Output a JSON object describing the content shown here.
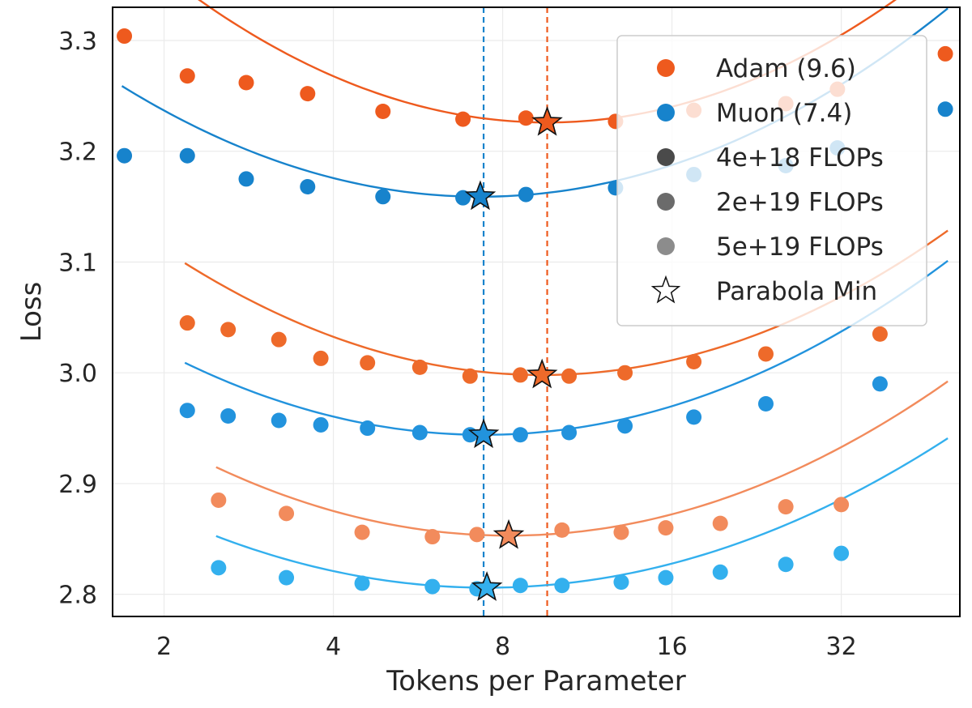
{
  "chart_data": {
    "type": "scatter",
    "xlabel": "Tokens per Parameter",
    "ylabel": "Loss",
    "xscale": "log2",
    "xlim": [
      1.62,
      52
    ],
    "ylim": [
      2.78,
      3.33
    ],
    "xticks": [
      2,
      4,
      8,
      16,
      32
    ],
    "yticks": [
      2.8,
      2.9,
      3.0,
      3.1,
      3.2,
      3.3
    ],
    "ytick_labels": [
      "2.8",
      "2.9",
      "3.0",
      "3.1",
      "3.2",
      "3.3"
    ],
    "grid": true,
    "legend_position": "top-right",
    "optimal_lines": [
      {
        "optimizer": "Adam",
        "x": 9.6,
        "color": "#EE5A1E"
      },
      {
        "optimizer": "Muon",
        "x": 7.4,
        "color": "#1783CC"
      }
    ],
    "series": [
      {
        "name": "Adam 4e+18 FLOPs",
        "optimizer": "Adam",
        "flops": "4e+18",
        "color": "#EE5A1E",
        "points": [
          [
            1.7,
            3.304
          ],
          [
            2.2,
            3.268
          ],
          [
            2.8,
            3.262
          ],
          [
            3.6,
            3.252
          ],
          [
            4.9,
            3.236
          ],
          [
            6.8,
            3.229
          ],
          [
            8.8,
            3.23
          ],
          [
            12.7,
            3.227
          ],
          [
            17.5,
            3.237
          ],
          [
            25.5,
            3.243
          ],
          [
            31.5,
            3.256
          ],
          [
            49,
            3.288
          ]
        ],
        "curve": {
          "a": 0.0262,
          "x_min": 9.6,
          "y_min": 3.226
        },
        "min_star": [
          9.6,
          3.226
        ]
      },
      {
        "name": "Muon 4e+18 FLOPs",
        "optimizer": "Muon",
        "flops": "4e+18",
        "color": "#1783CC",
        "points": [
          [
            1.7,
            3.196
          ],
          [
            2.2,
            3.196
          ],
          [
            2.8,
            3.175
          ],
          [
            3.6,
            3.168
          ],
          [
            4.9,
            3.159
          ],
          [
            6.8,
            3.158
          ],
          [
            8.8,
            3.161
          ],
          [
            12.7,
            3.167
          ],
          [
            17.5,
            3.179
          ],
          [
            25.5,
            3.187
          ],
          [
            31.5,
            3.203
          ],
          [
            49,
            3.238
          ]
        ],
        "curve": {
          "a": 0.0223,
          "x_min": 7.3,
          "y_min": 3.159
        },
        "min_star": [
          7.3,
          3.159
        ]
      },
      {
        "name": "Adam 2e+19 FLOPs",
        "optimizer": "Adam",
        "flops": "2e+19",
        "color": "#EE6A2A",
        "points": [
          [
            2.2,
            3.045
          ],
          [
            2.6,
            3.039
          ],
          [
            3.2,
            3.03
          ],
          [
            3.8,
            3.013
          ],
          [
            4.6,
            3.009
          ],
          [
            5.7,
            3.005
          ],
          [
            7.0,
            2.997
          ],
          [
            8.6,
            2.998
          ],
          [
            10.5,
            2.997
          ],
          [
            13.2,
            3.0
          ],
          [
            17.5,
            3.01
          ],
          [
            23.5,
            3.017
          ],
          [
            37.5,
            3.035
          ]
        ],
        "curve": {
          "a": 0.0227,
          "x_min": 9.4,
          "y_min": 2.998
        },
        "min_star": [
          9.4,
          2.998
        ]
      },
      {
        "name": "Muon 2e+19 FLOPs",
        "optimizer": "Muon",
        "flops": "2e+19",
        "color": "#2293DD",
        "points": [
          [
            2.2,
            2.966
          ],
          [
            2.6,
            2.961
          ],
          [
            3.2,
            2.957
          ],
          [
            3.8,
            2.953
          ],
          [
            4.6,
            2.95
          ],
          [
            5.7,
            2.946
          ],
          [
            7.0,
            2.944
          ],
          [
            8.6,
            2.944
          ],
          [
            10.5,
            2.946
          ],
          [
            13.2,
            2.952
          ],
          [
            17.5,
            2.96
          ],
          [
            23.5,
            2.972
          ],
          [
            37.5,
            2.99
          ]
        ],
        "curve": {
          "a": 0.0209,
          "x_min": 7.4,
          "y_min": 2.944
        },
        "min_star": [
          7.4,
          2.944
        ]
      },
      {
        "name": "Adam 5e+19 FLOPs",
        "optimizer": "Adam",
        "flops": "5e+19",
        "color": "#F28B5C",
        "points": [
          [
            2.5,
            2.885
          ],
          [
            3.3,
            2.873
          ],
          [
            4.5,
            2.856
          ],
          [
            6.0,
            2.852
          ],
          [
            7.2,
            2.854
          ],
          [
            10.2,
            2.858
          ],
          [
            13.0,
            2.856
          ],
          [
            15.6,
            2.86
          ],
          [
            19.5,
            2.864
          ],
          [
            25.5,
            2.879
          ],
          [
            32.0,
            2.881
          ]
        ],
        "curve": {
          "a": 0.0207,
          "x_min": 8.2,
          "y_min": 2.853
        },
        "min_star": [
          8.2,
          2.853
        ]
      },
      {
        "name": "Muon 5e+19 FLOPs",
        "optimizer": "Muon",
        "flops": "5e+19",
        "color": "#33B0EE",
        "points": [
          [
            2.5,
            2.824
          ],
          [
            3.3,
            2.815
          ],
          [
            4.5,
            2.81
          ],
          [
            6.0,
            2.807
          ],
          [
            7.2,
            2.805
          ],
          [
            8.6,
            2.808
          ],
          [
            10.2,
            2.808
          ],
          [
            13.0,
            2.811
          ],
          [
            15.6,
            2.815
          ],
          [
            19.5,
            2.82
          ],
          [
            25.5,
            2.827
          ],
          [
            32.0,
            2.837
          ]
        ],
        "curve": {
          "a": 0.0182,
          "x_min": 7.5,
          "y_min": 2.806
        },
        "min_star": [
          7.5,
          2.806
        ]
      }
    ],
    "legend": [
      {
        "label": "Adam (9.6)",
        "marker": "circle",
        "color": "#EE5A1E"
      },
      {
        "label": "Muon (7.4)",
        "marker": "circle",
        "color": "#1783CC"
      },
      {
        "label": "4e+18 FLOPs",
        "marker": "circle",
        "color": "#4A4A4A"
      },
      {
        "label": "2e+19 FLOPs",
        "marker": "circle",
        "color": "#6B6B6B"
      },
      {
        "label": "5e+19 FLOPs",
        "marker": "circle",
        "color": "#8C8C8C"
      },
      {
        "label": "Parabola Min",
        "marker": "star",
        "color": "#FFFFFF"
      }
    ]
  }
}
